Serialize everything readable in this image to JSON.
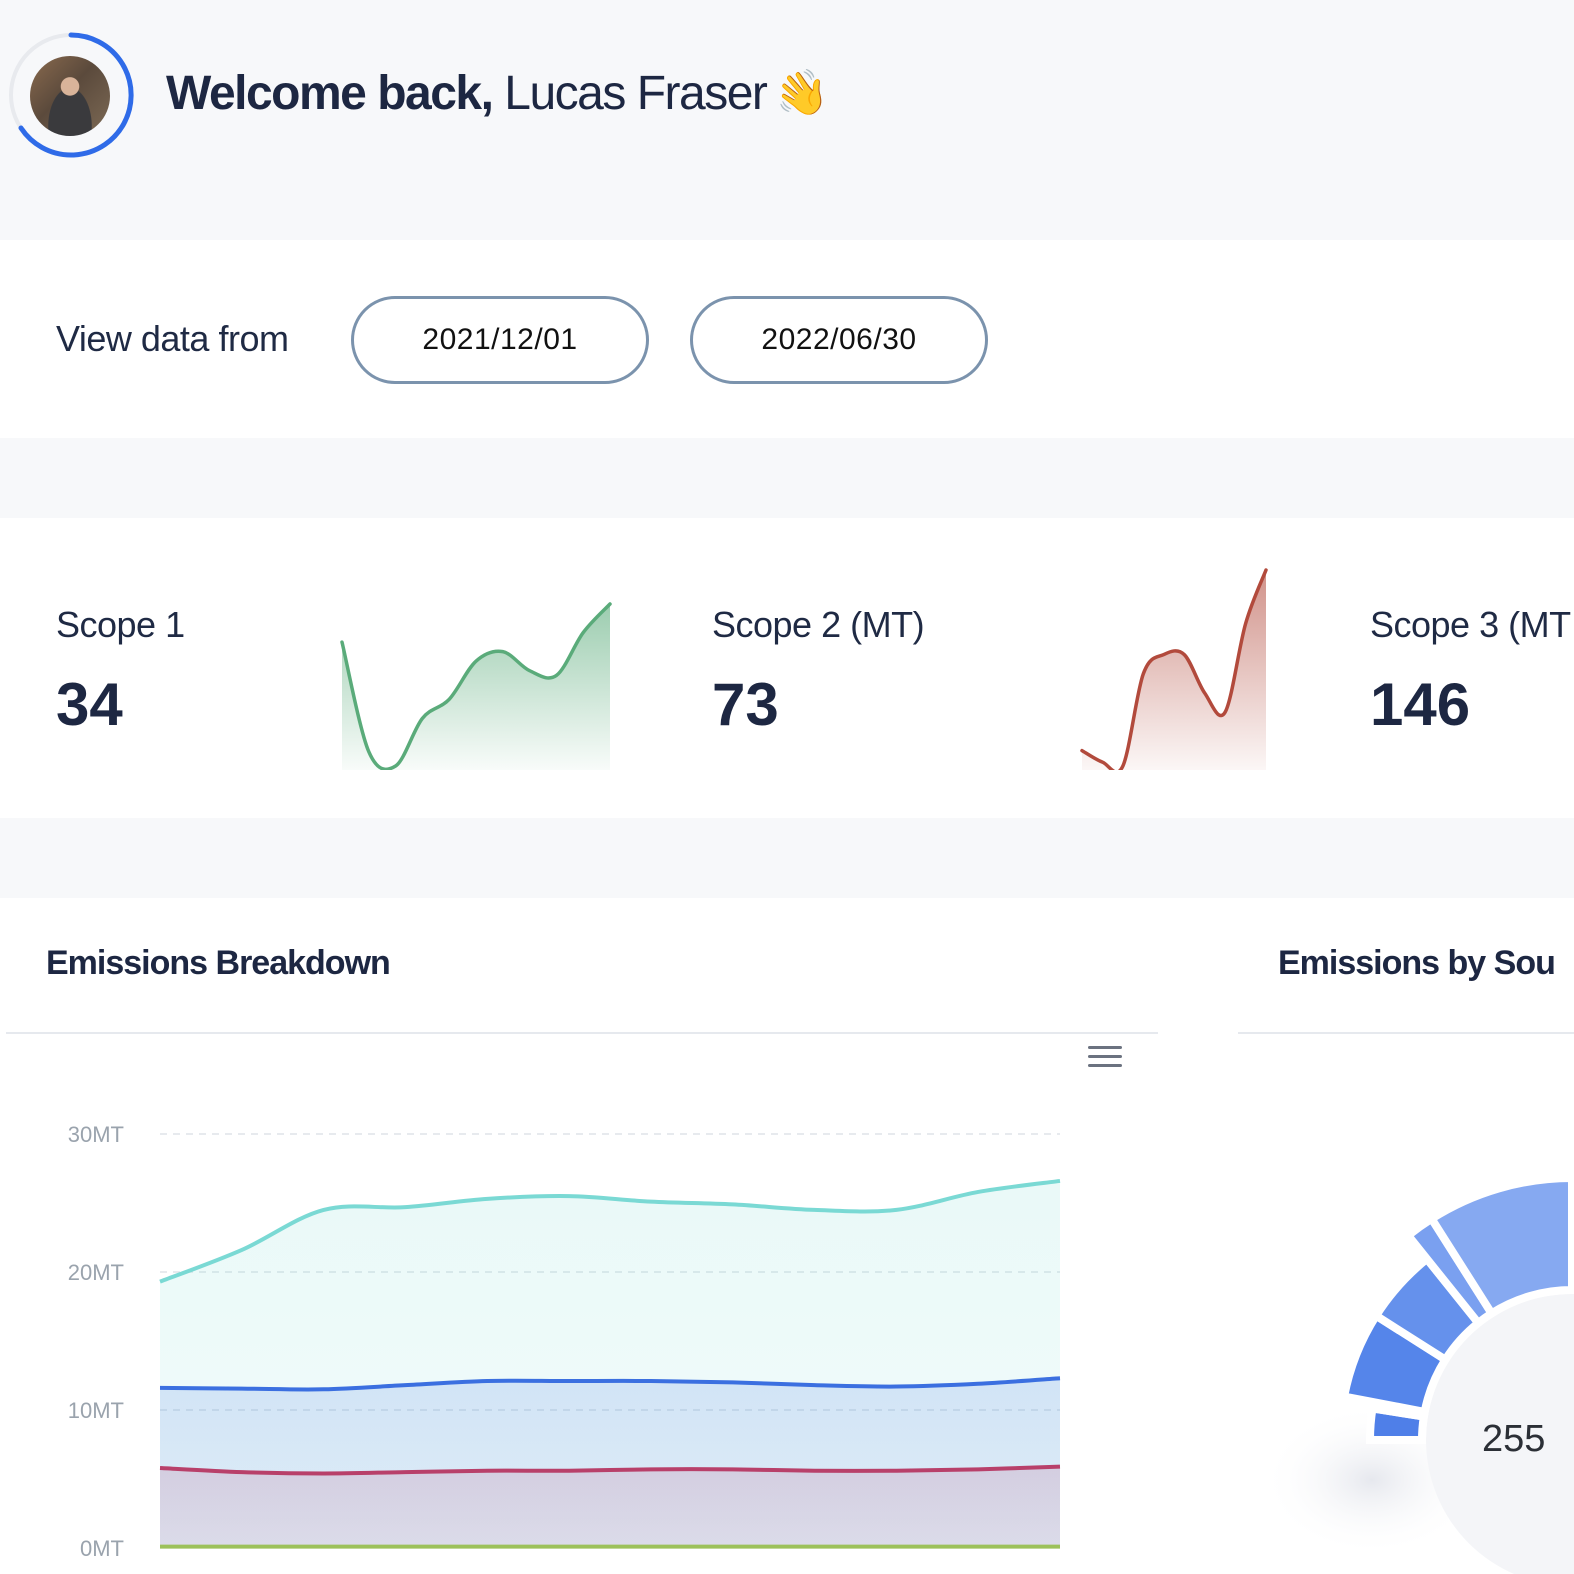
{
  "header": {
    "greeting": "Welcome back,",
    "user_name": "Lucas Fraser",
    "wave_emoji": "👋"
  },
  "date_filter": {
    "label": "View data from",
    "start_date": "2021/12/01",
    "end_date": "2022/06/30"
  },
  "scopes": [
    {
      "label": "Scope 1",
      "value": "34",
      "color": "#5aab7a"
    },
    {
      "label": "Scope 2 (MT)",
      "value": "73",
      "color": "#b24a3c"
    },
    {
      "label": "Scope 3 (MT",
      "value": "146"
    }
  ],
  "emissions_breakdown": {
    "title": "Emissions Breakdown",
    "menu_icon": "hamburger-menu-icon"
  },
  "emissions_by_source": {
    "title": "Emissions by Sou",
    "value": "255"
  },
  "chart_data": [
    {
      "type": "line",
      "name": "scope-1-sparkline",
      "values": [
        28,
        5,
        2,
        12,
        16,
        24,
        26,
        22,
        21,
        30,
        36
      ],
      "color": "#5aab7a"
    },
    {
      "type": "line",
      "name": "scope-2-sparkline",
      "values": [
        5,
        2,
        1,
        25,
        30,
        30,
        20,
        15,
        38,
        52
      ],
      "color": "#b24a3c"
    },
    {
      "type": "area",
      "title": "Emissions Breakdown",
      "ylim": [
        0,
        30
      ],
      "yticks": [
        "30MT",
        "20MT",
        "10MT",
        "0MT"
      ],
      "series": [
        {
          "color": "#7ad9d4",
          "values": [
            19.3,
            21.6,
            24.5,
            24.7,
            25.3,
            25.5,
            25.1,
            24.9,
            24.5,
            24.5,
            25.8,
            26.6
          ]
        },
        {
          "color": "#3b6fe0",
          "values": [
            11.6,
            11.55,
            11.5,
            11.8,
            12.1,
            12.1,
            12.1,
            12.0,
            11.8,
            11.7,
            11.9,
            12.3
          ]
        },
        {
          "color": "#b8406a",
          "values": [
            5.8,
            5.5,
            5.4,
            5.5,
            5.6,
            5.6,
            5.7,
            5.7,
            5.6,
            5.6,
            5.7,
            5.9
          ]
        },
        {
          "color": "#9cc15a",
          "values": [
            0.1,
            0.1,
            0.1,
            0.1,
            0.1,
            0.1,
            0.1,
            0.1,
            0.1,
            0.1,
            0.1,
            0.1
          ]
        }
      ]
    },
    {
      "type": "pie",
      "title": "Emissions by Sou",
      "segments": [
        {
          "color": "#4f7fe8",
          "value": 10
        },
        {
          "color": "#4f7fe8",
          "value": 2
        },
        {
          "color": "#5585ea",
          "value": 24
        },
        {
          "color": "#6591ec",
          "value": 21
        },
        {
          "color": "#7aa0f0",
          "value": 7
        },
        {
          "color": "#86a9f1",
          "value": 36
        }
      ]
    }
  ]
}
